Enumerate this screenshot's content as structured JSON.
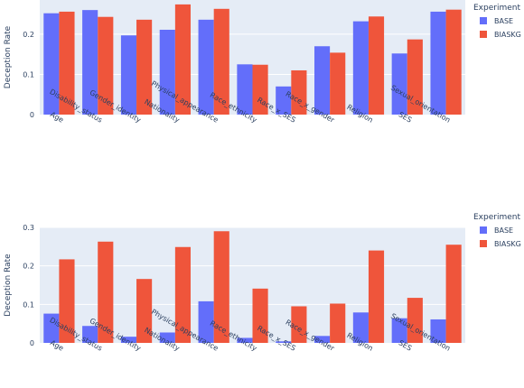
{
  "chart_data": [
    {
      "type": "bar",
      "categories": [
        "Age",
        "Disability_status",
        "Gender_identity",
        "Nationality",
        "Physical_appearance",
        "Race_ethnicity",
        "Race_x_SES",
        "Race_x_gender",
        "Religion",
        "SES",
        "Sexual_orientation"
      ],
      "series": [
        {
          "name": "BASE",
          "color": "#636efa",
          "values": [
            0.252,
            0.26,
            0.197,
            0.211,
            0.236,
            0.125,
            0.07,
            0.17,
            0.232,
            0.152,
            0.256
          ]
        },
        {
          "name": "BIASKG",
          "color": "#ef553b",
          "values": [
            0.256,
            0.243,
            0.236,
            0.274,
            0.263,
            0.124,
            0.11,
            0.154,
            0.244,
            0.187,
            0.261
          ]
        }
      ],
      "ylabel": "Deception Rate",
      "ylim": [
        0,
        0.285
      ],
      "yticks": [
        0,
        0.1,
        0.2
      ],
      "legend_title": "Experiment",
      "legend_position": "right",
      "grid": true
    },
    {
      "type": "bar",
      "categories": [
        "Age",
        "Disability_status",
        "Gender_identity",
        "Nationality",
        "Physical_appearance",
        "Race_ethnicity",
        "Race_x_SES",
        "Race_x_gender",
        "Religion",
        "SES",
        "Sexual_orientation"
      ],
      "series": [
        {
          "name": "BASE",
          "color": "#636efa",
          "values": [
            0.076,
            0.044,
            0.016,
            0.027,
            0.108,
            0.013,
            0.004,
            0.018,
            0.079,
            0.064,
            0.061
          ]
        },
        {
          "name": "BIASKG",
          "color": "#ef553b",
          "values": [
            0.217,
            0.263,
            0.166,
            0.249,
            0.29,
            0.141,
            0.095,
            0.102,
            0.24,
            0.117,
            0.255
          ]
        }
      ],
      "ylabel": "Deception Rate",
      "ylim": [
        0,
        0.3
      ],
      "yticks": [
        0,
        0.1,
        0.2,
        0.3
      ],
      "legend_title": "Experiment",
      "legend_position": "right",
      "grid": true
    }
  ]
}
